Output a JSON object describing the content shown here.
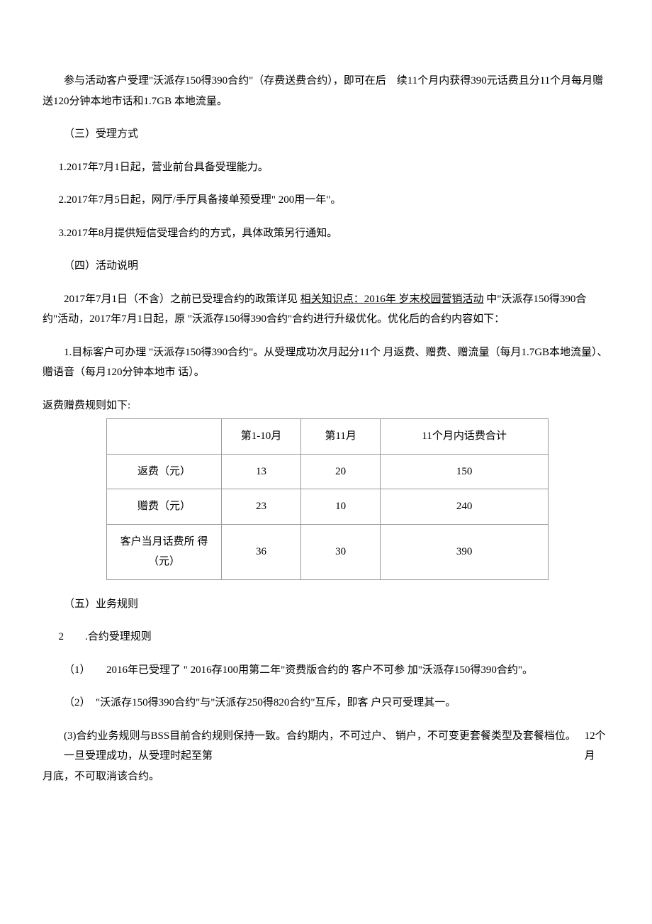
{
  "p1": "参与活动客户受理\"沃派存150得390合约\"（存费送费合约），即可在后　续11个月内获得390元话费且分11个月每月赠送120分钟本地市话和1.7GB 本地流量。",
  "s3": "（三）受理方式",
  "s3_1": "1.2017年7月1日起，营业前台具备受理能力。",
  "s3_2": "2.2017年7月5日起，网厅/手厅具备接单预受理\" 200用一年\"。",
  "s3_3": "3.2017年8月提供短信受理合约的方式，具体政策另行通知。",
  "s4": "（四）活动说明",
  "s4_p1_a": "2017年7月1日（不含）之前已受理合约的政策详见 ",
  "s4_p1_link": "相关知识点：2016年 岁末校园营销活动",
  "s4_p1_b": " 中\"沃派存150得390合约\"活动，2017年7月1日起，原 \"沃派存150得390合约\"合约进行升级优化。优化后的合约内容如下：",
  "s4_p2": "1.目标客户可办理 \"沃派存150得390合约\"。从受理成功次月起分11个 月返费、赠费、赠流量（每月1.7GB本地流量）、赠语音（每月120分钟本地市 话）。",
  "table_intro": "返费赠费规则如下:",
  "table": {
    "headers": [
      "",
      "第1-10月",
      "第11月",
      "11个月内话费合计"
    ],
    "rows": [
      [
        "返费（元）",
        "13",
        "20",
        "150"
      ],
      [
        "赠费（元）",
        "23",
        "10",
        "240"
      ],
      [
        "客户当月话费所 得（元）",
        "36",
        "30",
        "390"
      ]
    ]
  },
  "s5": "（五）业务规则",
  "s5_2": "2　　.合约受理规则",
  "s5_2_1": "（1）　　2016年已受理了 \" 2016存100用第二年\"资费版合约的 客户不可参 加\"沃派存150得390合约\"。",
  "s5_2_2": "（2）　\"沃派存150得390合约\"与\"沃派存250得820合约\"互斥，即客 户只可受理其一。",
  "s5_2_3a": "(3)合约业务规则与BSS目前合约规则保持一致。合约期内，不可过户、 销户，不可变更套餐类型及套餐档位。一旦受理成功，从受理时起至第",
  "s5_2_3b": "12个月",
  "s5_2_3c": "月底，不可取消该合约。"
}
